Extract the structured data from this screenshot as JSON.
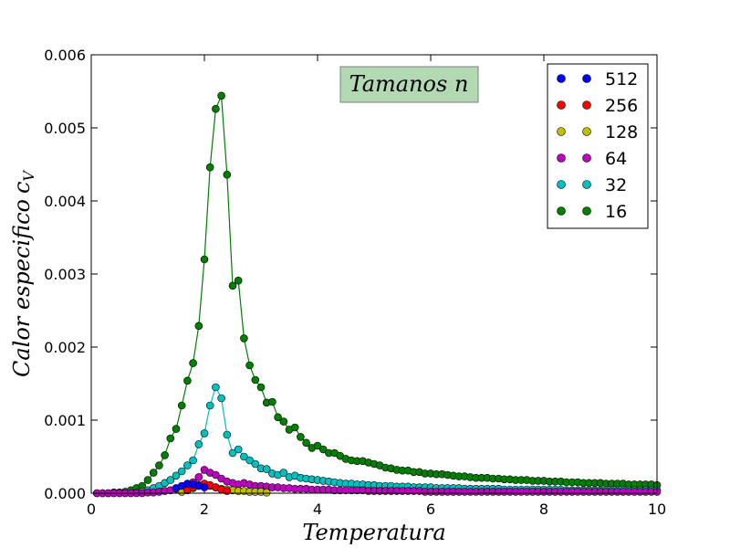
{
  "chart_data": {
    "type": "line",
    "xlabel": "Temperatura",
    "ylabel": "Calor especifico",
    "ylabel_sub": "V",
    "annotation": "Tamanos n",
    "xlim": [
      0,
      10
    ],
    "ylim": [
      0,
      0.006
    ],
    "xticks": [
      "0",
      "2",
      "4",
      "6",
      "8",
      "10"
    ],
    "yticks": [
      "0.000",
      "0.001",
      "0.002",
      "0.003",
      "0.004",
      "0.005",
      "0.006"
    ],
    "legend_position": "top-right",
    "grid": false,
    "annotation_bg": "#b2d9b2",
    "series": [
      {
        "name": "512",
        "color": "#0000ff",
        "line": false,
        "x": [
          1.5,
          1.6,
          1.7,
          1.8,
          1.9,
          2.0
        ],
        "y": [
          7e-05,
          0.0001,
          0.00013,
          0.00012,
          0.0001,
          8e-05
        ]
      },
      {
        "name": "256",
        "color": "#ff0000",
        "line": false,
        "x": [
          1.7,
          1.8,
          1.9,
          2.0,
          2.1,
          2.2,
          2.3,
          2.4
        ],
        "y": [
          5e-05,
          8e-05,
          0.00011,
          0.00013,
          0.00011,
          8e-05,
          5e-05,
          3e-05
        ]
      },
      {
        "name": "128",
        "color": "#bfbf00",
        "line": false,
        "x": [
          1.6,
          1.7,
          1.8,
          1.9,
          2.0,
          2.1,
          2.2,
          2.3,
          2.4,
          2.5,
          2.6,
          2.7,
          2.8,
          2.9,
          3.0,
          3.1
        ],
        "y": [
          2e-05,
          4e-05,
          7e-05,
          0.0001,
          0.00012,
          0.0001,
          8e-05,
          6e-05,
          5e-05,
          4e-05,
          3e-05,
          3e-05,
          2e-05,
          2e-05,
          2e-05,
          1e-05
        ]
      },
      {
        "name": "64",
        "color": "#bf00bf",
        "line": true,
        "x": [
          0.1,
          0.2,
          0.3,
          0.4,
          0.5,
          0.6,
          0.7,
          0.8,
          0.9,
          1.0,
          1.1,
          1.2,
          1.3,
          1.4,
          1.5,
          1.6,
          1.7,
          1.8,
          1.9,
          2.0,
          2.1,
          2.2,
          2.3,
          2.4,
          2.5,
          2.6,
          2.7,
          2.8,
          2.9,
          3.0,
          3.1,
          3.2,
          3.3,
          3.4,
          3.5,
          3.6,
          3.7,
          3.8,
          3.9,
          4.0,
          4.1,
          4.2,
          4.3,
          4.4,
          4.5,
          4.6,
          4.7,
          4.8,
          4.9,
          5.0,
          5.1,
          5.2,
          5.3,
          5.4,
          5.5,
          5.6,
          5.7,
          5.8,
          5.9,
          6.0,
          6.1,
          6.2,
          6.3,
          6.4,
          6.5,
          6.6,
          6.7,
          6.8,
          6.9,
          7.0,
          7.1,
          7.2,
          7.3,
          7.4,
          7.5,
          7.6,
          7.7,
          7.8,
          7.9,
          8.0,
          8.1,
          8.2,
          8.3,
          8.4,
          8.5,
          8.6,
          8.7,
          8.8,
          8.9,
          9.0,
          9.1,
          9.2,
          9.3,
          9.4,
          9.5,
          9.6,
          9.7,
          9.8,
          9.9,
          10.0
        ],
        "y": [
          0,
          0,
          0,
          0,
          0,
          0,
          0,
          0,
          0,
          1e-05,
          1e-05,
          2e-05,
          3e-05,
          4e-05,
          6e-05,
          8e-05,
          0.00011,
          0.00015,
          0.00022,
          0.00032,
          0.00028,
          0.00025,
          0.0002,
          0.00016,
          0.00014,
          0.00012,
          0.00014,
          0.00012,
          0.0001,
          0.0001,
          9e-05,
          8e-05,
          8e-05,
          7e-05,
          7e-05,
          6e-05,
          6e-05,
          6e-05,
          5e-05,
          5e-05,
          5e-05,
          5e-05,
          4e-05,
          4e-05,
          4e-05,
          4e-05,
          4e-05,
          4e-05,
          3e-05,
          3e-05,
          3e-05,
          3e-05,
          3e-05,
          3e-05,
          3e-05,
          3e-05,
          3e-05,
          3e-05,
          2e-05,
          2e-05,
          2e-05,
          2e-05,
          2e-05,
          2e-05,
          2e-05,
          2e-05,
          2e-05,
          2e-05,
          2e-05,
          2e-05,
          2e-05,
          2e-05,
          2e-05,
          2e-05,
          2e-05,
          2e-05,
          2e-05,
          2e-05,
          2e-05,
          2e-05,
          2e-05,
          2e-05,
          2e-05,
          2e-05,
          2e-05,
          2e-05,
          2e-05,
          2e-05,
          2e-05,
          2e-05,
          2e-05,
          2e-05,
          2e-05,
          2e-05,
          2e-05,
          2e-05,
          2e-05,
          2e-05,
          2e-05,
          2e-05
        ]
      },
      {
        "name": "32",
        "color": "#00bfbf",
        "line": true,
        "x": [
          0.1,
          0.2,
          0.3,
          0.4,
          0.5,
          0.6,
          0.7,
          0.8,
          0.9,
          1.0,
          1.1,
          1.2,
          1.3,
          1.4,
          1.5,
          1.6,
          1.7,
          1.8,
          1.9,
          2.0,
          2.1,
          2.2,
          2.3,
          2.4,
          2.5,
          2.6,
          2.7,
          2.8,
          2.9,
          3.0,
          3.1,
          3.2,
          3.3,
          3.4,
          3.5,
          3.6,
          3.7,
          3.8,
          3.9,
          4.0,
          4.1,
          4.2,
          4.3,
          4.4,
          4.5,
          4.6,
          4.7,
          4.8,
          4.9,
          5.0,
          5.1,
          5.2,
          5.3,
          5.4,
          5.5,
          5.6,
          5.7,
          5.8,
          5.9,
          6.0,
          6.1,
          6.2,
          6.3,
          6.4,
          6.5,
          6.6,
          6.7,
          6.8,
          6.9,
          7.0,
          7.1,
          7.2,
          7.3,
          7.4,
          7.5,
          7.6,
          7.7,
          7.8,
          7.9,
          8.0,
          8.1,
          8.2,
          8.3,
          8.4,
          8.5,
          8.6,
          8.7,
          8.8,
          8.9,
          9.0,
          9.1,
          9.2,
          9.3,
          9.4,
          9.5,
          9.6,
          9.7,
          9.8,
          9.9,
          10.0
        ],
        "y": [
          0,
          0,
          0,
          0,
          0,
          0,
          0,
          1e-05,
          2e-05,
          4e-05,
          7e-05,
          0.0001,
          0.00014,
          0.00018,
          0.00024,
          0.0003,
          0.00038,
          0.00045,
          0.00067,
          0.00082,
          0.0012,
          0.00145,
          0.0013,
          0.0008,
          0.00055,
          0.0006,
          0.0005,
          0.00045,
          0.0004,
          0.00034,
          0.00033,
          0.00027,
          0.00025,
          0.00028,
          0.00022,
          0.00024,
          0.00021,
          0.0002,
          0.00019,
          0.00018,
          0.00017,
          0.00016,
          0.00015,
          0.00014,
          0.00013,
          0.00013,
          0.00012,
          0.00012,
          0.00011,
          0.00011,
          0.0001,
          0.0001,
          0.0001,
          9e-05,
          9e-05,
          9e-05,
          8e-05,
          8e-05,
          8e-05,
          8e-05,
          7e-05,
          7e-05,
          7e-05,
          7e-05,
          7e-05,
          6e-05,
          6e-05,
          6e-05,
          6e-05,
          6e-05,
          6e-05,
          6e-05,
          5e-05,
          5e-05,
          5e-05,
          5e-05,
          5e-05,
          5e-05,
          5e-05,
          5e-05,
          5e-05,
          5e-05,
          5e-05,
          4e-05,
          4e-05,
          4e-05,
          4e-05,
          4e-05,
          4e-05,
          4e-05,
          4e-05,
          4e-05,
          4e-05,
          4e-05,
          4e-05,
          4e-05,
          4e-05,
          4e-05,
          4e-05,
          4e-05
        ]
      },
      {
        "name": "16",
        "color": "#007f00",
        "line": true,
        "x": [
          0.2,
          0.3,
          0.4,
          0.5,
          0.6,
          0.7,
          0.8,
          0.9,
          1.0,
          1.1,
          1.2,
          1.3,
          1.4,
          1.5,
          1.6,
          1.7,
          1.8,
          1.9,
          2.0,
          2.1,
          2.2,
          2.3,
          2.4,
          2.5,
          2.6,
          2.7,
          2.8,
          2.9,
          3.0,
          3.1,
          3.2,
          3.3,
          3.4,
          3.5,
          3.6,
          3.7,
          3.8,
          3.9,
          4.0,
          4.1,
          4.2,
          4.3,
          4.4,
          4.5,
          4.6,
          4.7,
          4.8,
          4.9,
          5.0,
          5.1,
          5.2,
          5.3,
          5.4,
          5.5,
          5.6,
          5.7,
          5.8,
          5.9,
          6.0,
          6.1,
          6.2,
          6.3,
          6.4,
          6.5,
          6.6,
          6.7,
          6.8,
          6.9,
          7.0,
          7.1,
          7.2,
          7.3,
          7.4,
          7.5,
          7.6,
          7.7,
          7.8,
          7.9,
          8.0,
          8.1,
          8.2,
          8.3,
          8.4,
          8.5,
          8.6,
          8.7,
          8.8,
          8.9,
          9.0,
          9.1,
          9.2,
          9.3,
          9.4,
          9.5,
          9.6,
          9.7,
          9.8,
          9.9,
          10.0
        ],
        "y": [
          0.0,
          0.0,
          1e-05,
          1e-05,
          2e-05,
          4e-05,
          7e-05,
          0.0001,
          0.00018,
          0.00028,
          0.00038,
          0.00052,
          0.00075,
          0.00088,
          0.0012,
          0.00154,
          0.00178,
          0.00229,
          0.0032,
          0.00446,
          0.00526,
          0.00544,
          0.00436,
          0.00284,
          0.00291,
          0.00212,
          0.00175,
          0.00155,
          0.00145,
          0.00124,
          0.00125,
          0.00104,
          0.00098,
          0.00087,
          0.0009,
          0.00077,
          0.00069,
          0.00062,
          0.00065,
          0.0006,
          0.00055,
          0.00055,
          0.00051,
          0.00047,
          0.00045,
          0.00044,
          0.00044,
          0.00042,
          0.0004,
          0.00038,
          0.00035,
          0.00034,
          0.00032,
          0.00031,
          0.00031,
          0.00029,
          0.00029,
          0.00027,
          0.00027,
          0.00026,
          0.00026,
          0.00025,
          0.00024,
          0.00023,
          0.00023,
          0.00022,
          0.00021,
          0.00021,
          0.00021,
          0.0002,
          0.0002,
          0.00019,
          0.00019,
          0.00018,
          0.00018,
          0.00018,
          0.00017,
          0.00017,
          0.00017,
          0.00016,
          0.00016,
          0.00016,
          0.00015,
          0.00015,
          0.00015,
          0.00014,
          0.00014,
          0.00014,
          0.00014,
          0.00013,
          0.00013,
          0.00013,
          0.00013,
          0.00012,
          0.00012,
          0.00012,
          0.00012,
          0.00012,
          0.00011
        ]
      }
    ]
  }
}
